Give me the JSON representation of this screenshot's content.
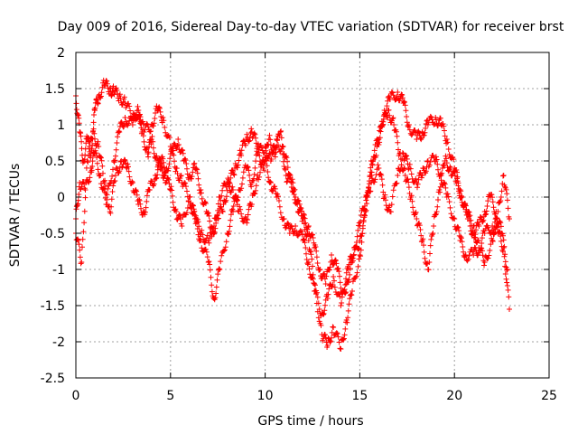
{
  "chart_data": {
    "type": "scatter",
    "title": "Day 009 of 2016, Sidereal Day-to-day VTEC variation (SDTVAR) for receiver brst",
    "xlabel": "GPS time / hours",
    "ylabel": "SDTVAR / TECUs",
    "xlim": [
      0,
      25
    ],
    "ylim": [
      -2.5,
      2
    ],
    "xticks": [
      "0",
      "5",
      "10",
      "15",
      "20",
      "25"
    ],
    "yticks": [
      "-2.5",
      "-2",
      "-1.5",
      "-1",
      "-0.5",
      "0",
      "0.5",
      "1",
      "1.5",
      "2"
    ],
    "grid": true,
    "marker": "+",
    "colors": {
      "series": "#ff0000",
      "grid": "#a0a0a0",
      "axis": "#000000"
    },
    "series": [
      {
        "name": "SDTVAR",
        "x": [
          0.0,
          0.2,
          0.4,
          0.6,
          0.8,
          1.0,
          1.2,
          1.5,
          1.8,
          2.0,
          2.3,
          2.6,
          3.0,
          3.3,
          3.5,
          3.8,
          4.0,
          4.3,
          4.5,
          4.7,
          5.0,
          5.3,
          5.6,
          6.0,
          6.3,
          6.6,
          7.0,
          7.3,
          7.6,
          8.0,
          8.3,
          8.6,
          9.0,
          9.3,
          9.6,
          10.0,
          10.3,
          10.6,
          11.0,
          11.3,
          11.6,
          12.0,
          12.3,
          12.6,
          13.0,
          13.3,
          13.6,
          14.0,
          14.3,
          14.6,
          15.0,
          15.3,
          15.6,
          16.0,
          16.3,
          16.6,
          17.0,
          17.3,
          17.6,
          18.0,
          18.3,
          18.6,
          19.0,
          19.3,
          19.6,
          20.0,
          20.3,
          20.6,
          21.0,
          21.3,
          21.6,
          22.0,
          22.3,
          22.6,
          22.9
        ],
        "y": [
          1.4,
          0.9,
          0.5,
          0.8,
          0.6,
          1.2,
          1.4,
          1.55,
          1.5,
          1.45,
          1.4,
          1.3,
          1.1,
          1.2,
          0.9,
          0.6,
          0.8,
          0.5,
          0.4,
          0.3,
          0.1,
          -0.2,
          -0.4,
          0.0,
          -0.3,
          -0.6,
          -0.9,
          -1.4,
          -1.0,
          -0.5,
          -0.2,
          0.1,
          0.4,
          0.2,
          0.6,
          0.7,
          0.5,
          0.8,
          0.6,
          0.3,
          0.0,
          -0.3,
          -0.6,
          -1.2,
          -1.9,
          -2.05,
          -1.8,
          -2.1,
          -1.7,
          -1.3,
          -0.8,
          -0.2,
          0.5,
          0.8,
          1.2,
          1.35,
          1.45,
          1.3,
          1.0,
          0.8,
          0.9,
          1.0,
          1.1,
          1.0,
          0.8,
          0.4,
          0.1,
          -0.2,
          -0.4,
          -0.7,
          -0.9,
          -0.6,
          -0.2,
          0.3,
          -0.3
        ]
      },
      {
        "name": "SDTVAR",
        "x": [
          0.0,
          0.2,
          0.5,
          0.8,
          1.0,
          1.3,
          1.6,
          2.0,
          2.3,
          2.6,
          3.0,
          3.3,
          3.6,
          4.0,
          4.3,
          4.6,
          5.0,
          5.3,
          5.6,
          6.0,
          6.3,
          6.6,
          7.0,
          7.3,
          7.6,
          8.0,
          8.3,
          8.6,
          9.0,
          9.3,
          9.6,
          10.0,
          10.3,
          10.6,
          11.0,
          11.3,
          11.6,
          12.0,
          12.3,
          12.6,
          13.0,
          13.3,
          13.6,
          14.0,
          14.3,
          14.6,
          15.0,
          15.3,
          15.6,
          16.0,
          16.3,
          16.6,
          17.0,
          17.3,
          17.6,
          18.0,
          18.3,
          18.6,
          19.0,
          19.3,
          19.6,
          20.0,
          20.3,
          20.6,
          21.0,
          21.3,
          21.6,
          22.0,
          22.3,
          22.6,
          22.9
        ],
        "y": [
          -0.3,
          0.2,
          0.1,
          0.4,
          0.6,
          0.3,
          -0.1,
          0.5,
          0.9,
          1.1,
          1.0,
          1.2,
          0.9,
          1.0,
          1.2,
          1.1,
          0.7,
          0.4,
          0.2,
          0.0,
          -0.3,
          -0.5,
          -0.6,
          -0.4,
          0.0,
          0.2,
          0.1,
          -0.2,
          -0.3,
          -0.1,
          0.3,
          0.5,
          0.2,
          0.0,
          -0.3,
          -0.5,
          -0.4,
          -0.6,
          -0.9,
          -1.3,
          -1.6,
          -1.4,
          -1.1,
          -1.5,
          -1.2,
          -0.9,
          -0.6,
          -0.2,
          0.2,
          0.4,
          0.0,
          -0.2,
          0.3,
          0.6,
          0.4,
          0.2,
          0.3,
          0.5,
          0.5,
          0.3,
          0.0,
          -0.3,
          -0.6,
          -0.8,
          -0.8,
          -0.7,
          -0.5,
          -0.4,
          -0.5,
          -0.7,
          -1.55
        ]
      },
      {
        "name": "SDTVAR",
        "x": [
          0.0,
          0.3,
          0.6,
          0.9,
          1.2,
          1.5,
          1.8,
          2.1,
          2.4,
          2.7,
          3.0,
          3.3,
          3.6,
          3.9,
          4.2,
          4.5,
          4.8,
          5.1,
          5.4,
          5.7,
          6.0,
          6.3,
          6.6,
          6.9,
          7.2,
          7.5,
          7.8,
          8.1,
          8.4,
          8.7,
          9.0,
          9.3,
          9.6,
          9.9,
          10.2,
          10.5,
          10.8,
          11.1,
          11.4,
          11.7,
          12.0,
          12.3,
          12.6,
          12.9,
          13.2,
          13.5,
          13.8,
          14.1,
          14.4,
          14.7,
          15.0,
          15.3,
          15.6,
          15.9,
          16.2,
          16.5,
          16.8,
          17.1,
          17.4,
          17.7,
          18.0,
          18.3,
          18.6,
          18.9,
          19.2,
          19.5,
          19.8,
          20.1,
          20.4,
          20.7,
          21.0,
          21.3,
          21.6,
          21.9,
          22.2,
          22.5,
          22.8
        ],
        "y": [
          -0.5,
          -0.9,
          0.5,
          0.9,
          0.7,
          0.2,
          -0.2,
          0.3,
          0.5,
          0.4,
          0.2,
          -0.1,
          -0.2,
          0.1,
          0.3,
          0.5,
          0.4,
          0.6,
          0.8,
          0.5,
          0.3,
          0.4,
          0.1,
          -0.2,
          -0.5,
          -0.3,
          -0.1,
          0.2,
          0.4,
          0.6,
          0.8,
          0.9,
          0.7,
          0.4,
          0.8,
          0.6,
          0.9,
          0.3,
          0.2,
          -0.1,
          -0.3,
          -0.4,
          -0.7,
          -1.0,
          -1.2,
          -0.8,
          -1.0,
          -1.3,
          -1.0,
          -0.7,
          -0.4,
          0.0,
          0.3,
          0.7,
          1.0,
          1.2,
          1.0,
          0.6,
          0.3,
          0.0,
          -0.3,
          -0.6,
          -1.0,
          -0.4,
          0.1,
          0.5,
          0.4,
          0.2,
          0.0,
          -0.3,
          -0.5,
          -0.4,
          -0.2,
          0.0,
          -0.2,
          -0.5,
          -1.0
        ]
      }
    ]
  }
}
